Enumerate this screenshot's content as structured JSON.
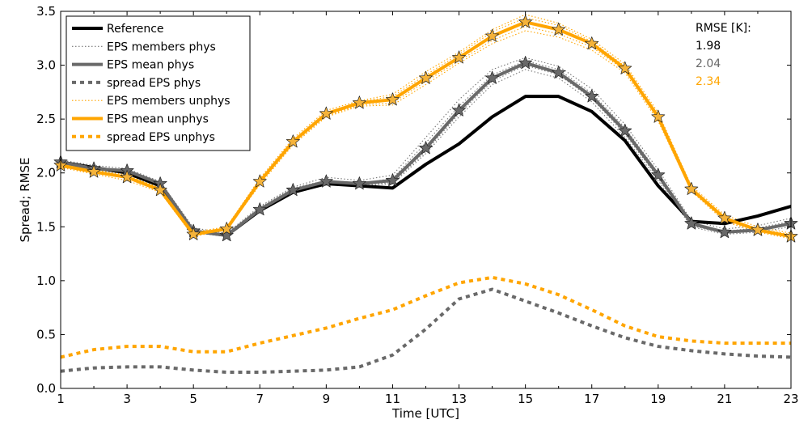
{
  "chart_data": {
    "type": "line",
    "xlabel": "Time [UTC]",
    "ylabel": "Spread; RMSE",
    "xlim": [
      1,
      23
    ],
    "ylim": [
      0.0,
      3.5
    ],
    "x_ticks": [
      "1",
      "3",
      "5",
      "7",
      "9",
      "11",
      "13",
      "15",
      "17",
      "19",
      "21",
      "23"
    ],
    "y_ticks": [
      "0.0",
      "0.5",
      "1.0",
      "1.5",
      "2.0",
      "2.5",
      "3.0",
      "3.5"
    ],
    "grid": false,
    "legend_position": "top-left",
    "x": [
      1,
      2,
      3,
      4,
      5,
      6,
      7,
      8,
      9,
      10,
      11,
      12,
      13,
      14,
      15,
      16,
      17,
      18,
      19,
      20,
      21,
      22,
      23
    ],
    "series": [
      {
        "name": "Reference",
        "style": "reference",
        "color": "#000000",
        "values": [
          2.1,
          2.05,
          2.0,
          1.88,
          1.46,
          1.42,
          1.65,
          1.82,
          1.9,
          1.88,
          1.86,
          2.08,
          2.27,
          2.52,
          2.71,
          2.71,
          2.57,
          2.3,
          1.88,
          1.55,
          1.53,
          1.6,
          1.69
        ]
      },
      {
        "name": "EPS members phys",
        "style": "members-phys",
        "color": "#777777",
        "members": [
          [
            2.12,
            2.07,
            2.04,
            1.92,
            1.49,
            1.44,
            1.69,
            1.87,
            1.96,
            1.93,
            1.98,
            2.33,
            2.68,
            2.96,
            3.07,
            2.99,
            2.78,
            2.45,
            2.03,
            1.56,
            1.48,
            1.51,
            1.58
          ],
          [
            2.08,
            2.02,
            2.0,
            1.88,
            1.45,
            1.41,
            1.64,
            1.82,
            1.89,
            1.88,
            1.9,
            2.18,
            2.52,
            2.82,
            2.96,
            2.88,
            2.66,
            2.33,
            1.93,
            1.5,
            1.43,
            1.45,
            1.5
          ],
          [
            2.11,
            2.05,
            2.03,
            1.9,
            1.47,
            1.43,
            1.68,
            1.86,
            1.93,
            1.9,
            1.95,
            2.28,
            2.62,
            2.91,
            3.04,
            2.96,
            2.74,
            2.42,
            2.0,
            1.53,
            1.46,
            1.49,
            1.55
          ],
          [
            2.09,
            2.03,
            2.01,
            1.89,
            1.46,
            1.42,
            1.65,
            1.83,
            1.91,
            1.89,
            1.91,
            2.2,
            2.55,
            2.85,
            3.0,
            2.91,
            2.69,
            2.36,
            1.95,
            1.51,
            1.44,
            1.46,
            1.52
          ]
        ]
      },
      {
        "name": "EPS mean phys",
        "style": "mean-phys",
        "color": "#696969",
        "values": [
          2.1,
          2.04,
          2.02,
          1.9,
          1.46,
          1.42,
          1.66,
          1.84,
          1.92,
          1.9,
          1.93,
          2.23,
          2.58,
          2.88,
          3.02,
          2.93,
          2.71,
          2.39,
          1.98,
          1.53,
          1.45,
          1.47,
          1.53
        ]
      },
      {
        "name": "spread EPS phys",
        "style": "spread-phys",
        "color": "#696969",
        "values": [
          0.16,
          0.19,
          0.2,
          0.2,
          0.17,
          0.15,
          0.15,
          0.16,
          0.17,
          0.2,
          0.31,
          0.55,
          0.83,
          0.92,
          0.81,
          0.7,
          0.58,
          0.47,
          0.39,
          0.35,
          0.32,
          0.3,
          0.29
        ]
      },
      {
        "name": "EPS members unphys",
        "style": "members-unphys",
        "color": "#ffa500",
        "members": [
          [
            2.09,
            2.03,
            1.98,
            1.86,
            1.45,
            1.5,
            1.95,
            2.32,
            2.58,
            2.67,
            2.73,
            2.94,
            3.12,
            3.33,
            3.47,
            3.39,
            3.24,
            3.01,
            2.56,
            1.88,
            1.61,
            1.5,
            1.44
          ],
          [
            2.05,
            1.99,
            1.93,
            1.82,
            1.41,
            1.47,
            1.89,
            2.26,
            2.52,
            2.62,
            2.63,
            2.82,
            3.02,
            3.2,
            3.32,
            3.26,
            3.14,
            2.93,
            2.48,
            1.83,
            1.55,
            1.45,
            1.39
          ],
          [
            2.08,
            2.02,
            1.97,
            1.86,
            1.44,
            1.49,
            1.93,
            2.3,
            2.56,
            2.66,
            2.71,
            2.91,
            3.1,
            3.31,
            3.44,
            3.37,
            3.22,
            2.99,
            2.54,
            1.86,
            1.59,
            1.48,
            1.43
          ],
          [
            2.06,
            2.0,
            1.95,
            1.83,
            1.42,
            1.48,
            1.91,
            2.27,
            2.53,
            2.63,
            2.65,
            2.85,
            3.04,
            3.23,
            3.36,
            3.29,
            3.17,
            2.95,
            2.5,
            1.84,
            1.56,
            1.46,
            1.4
          ]
        ]
      },
      {
        "name": "EPS mean unphys",
        "style": "mean-unphys",
        "color": "#ffa500",
        "values": [
          2.07,
          2.01,
          1.96,
          1.84,
          1.43,
          1.48,
          1.92,
          2.29,
          2.55,
          2.65,
          2.68,
          2.88,
          3.07,
          3.27,
          3.4,
          3.33,
          3.2,
          2.97,
          2.52,
          1.85,
          1.58,
          1.47,
          1.41
        ]
      },
      {
        "name": "spread EPS unphys",
        "style": "spread-unphys",
        "color": "#ffa500",
        "values": [
          0.29,
          0.36,
          0.39,
          0.39,
          0.34,
          0.34,
          0.42,
          0.49,
          0.56,
          0.65,
          0.73,
          0.86,
          0.98,
          1.03,
          0.97,
          0.87,
          0.73,
          0.58,
          0.48,
          0.44,
          0.42,
          0.42,
          0.42
        ]
      }
    ],
    "rmse_box": {
      "title": "RMSE [K]:",
      "entries": [
        {
          "value": "1.98",
          "color": "#000000"
        },
        {
          "value": "2.04",
          "color": "#696969"
        },
        {
          "value": "2.34",
          "color": "#ffa500"
        }
      ]
    }
  }
}
